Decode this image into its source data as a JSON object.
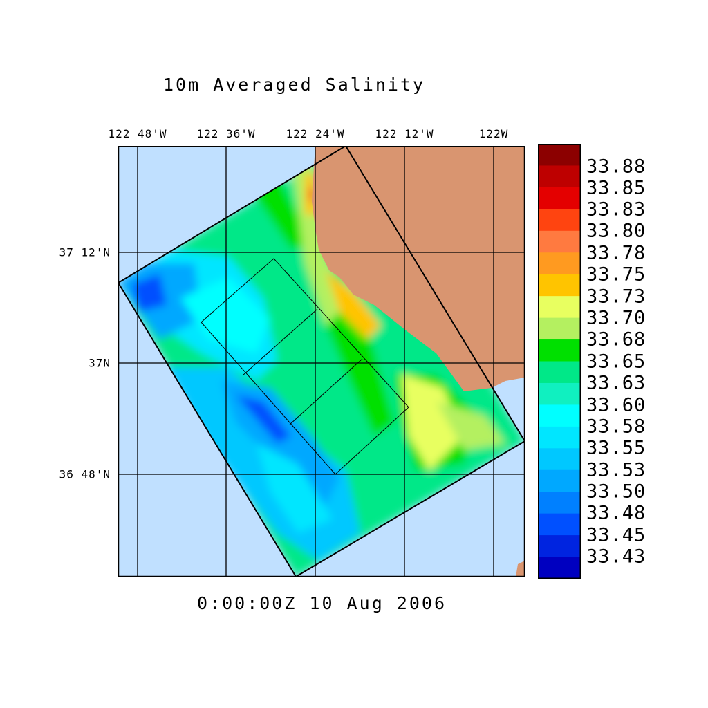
{
  "title": "10m Averaged Salinity",
  "timestamp": "0:00:00Z  10 Aug 2006",
  "lon_ticks": [
    "122 48'W",
    "122 36'W",
    "122 24'W",
    "122 12'W",
    "122W"
  ],
  "lat_ticks": [
    "37 12'N",
    "37N",
    "36 48'N"
  ],
  "colorbar": {
    "labels": [
      "33.88",
      "33.85",
      "33.83",
      "33.80",
      "33.78",
      "33.75",
      "33.73",
      "33.70",
      "33.68",
      "33.65",
      "33.63",
      "33.60",
      "33.58",
      "33.55",
      "33.53",
      "33.50",
      "33.48",
      "33.45",
      "33.43"
    ],
    "colors": [
      "#8c0000",
      "#be0000",
      "#e40000",
      "#ff4410",
      "#ff7a40",
      "#ff9a20",
      "#ffc400",
      "#e8ff60",
      "#b4f060",
      "#00e000",
      "#00e888",
      "#10f0c0",
      "#00ffff",
      "#00e6ff",
      "#00c8ff",
      "#00a8ff",
      "#0080ff",
      "#0050ff",
      "#0024e0",
      "#0000c0"
    ]
  },
  "map": {
    "ocean_color": "#c0e0ff",
    "land_color": "#d99570",
    "grid_color": "#000000"
  }
}
